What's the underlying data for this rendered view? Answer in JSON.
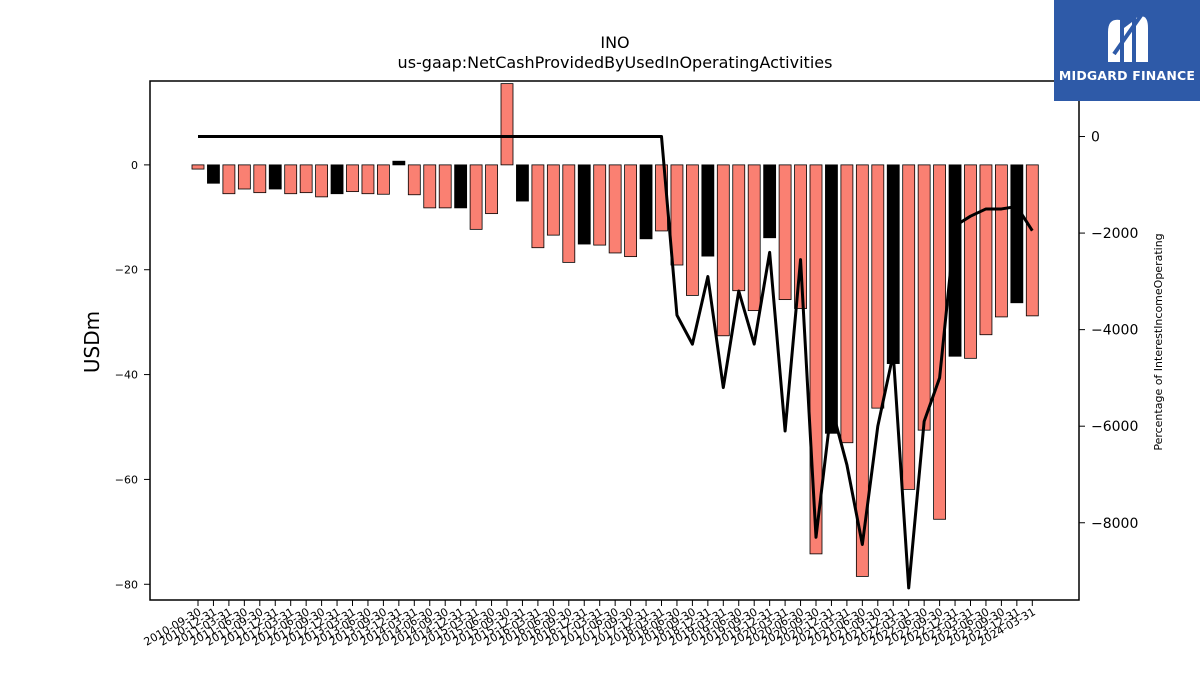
{
  "chart_data": {
    "type": "bar",
    "title": "INO",
    "subtitle": "us-gaap:NetCashProvidedByUsedInOperatingActivities",
    "ylabel": "USDm",
    "ylabel_right": "Percentage of InterestIncomeOperating",
    "ylim": [
      -83,
      16
    ],
    "ylim_right": [
      -9600,
      1150
    ],
    "yticks": [
      0,
      -20,
      -40,
      -60,
      -80
    ],
    "yticks_right": [
      0,
      -2000,
      -4000,
      -6000,
      -8000
    ],
    "grid": false,
    "categories": [
      "2010-09-30",
      "2010-12-31",
      "2011-03-31",
      "2011-06-30",
      "2011-09-30",
      "2011-12-31",
      "2012-03-31",
      "2012-06-30",
      "2012-09-30",
      "2012-12-31",
      "2013-03-31",
      "2013-06-30",
      "2013-09-30",
      "2013-12-31",
      "2014-03-31",
      "2014-06-30",
      "2014-09-30",
      "2014-12-31",
      "2015-03-31",
      "2015-06-30",
      "2015-09-30",
      "2015-12-31",
      "2016-03-31",
      "2016-06-30",
      "2016-09-30",
      "2016-12-31",
      "2017-03-31",
      "2017-06-30",
      "2017-09-30",
      "2017-12-31",
      "2018-03-31",
      "2018-06-30",
      "2018-09-30",
      "2018-12-31",
      "2019-03-31",
      "2019-06-30",
      "2019-09-30",
      "2019-12-31",
      "2020-03-31",
      "2020-06-30",
      "2020-09-30",
      "2020-12-31",
      "2021-03-31",
      "2021-06-30",
      "2021-09-30",
      "2021-12-31",
      "2022-03-31",
      "2022-06-30",
      "2022-09-30",
      "2022-12-31",
      "2023-03-31",
      "2023-06-30",
      "2023-09-30",
      "2023-12-31",
      "2024-03-31"
    ],
    "series": [
      {
        "values": [
          -0.8,
          -3.5,
          -5.5,
          -4.6,
          -5.3,
          -4.6,
          -5.5,
          -5.3,
          -6.1,
          -5.5,
          -5.1,
          -5.5,
          -5.6,
          0.7,
          -5.7,
          -8.2,
          -8.2,
          -8.2,
          -12.3,
          -9.3,
          15.5,
          -6.9,
          -15.8,
          -13.4,
          -18.6,
          -15.1,
          -15.3,
          -16.8,
          -17.5,
          -14.1,
          -12.6,
          -19.1,
          -24.9,
          -17.4,
          -32.6,
          -24.0,
          -27.8,
          -13.9,
          -25.7,
          -27.4,
          -74.2,
          -51.2,
          -53.0,
          -78.5,
          -46.4,
          -37.9,
          -61.9,
          -50.6,
          -67.6,
          -36.5,
          -36.9,
          -32.4,
          -29.0,
          -26.3,
          -28.8
        ],
        "colors": [
          "salmon",
          "black",
          "salmon",
          "salmon",
          "salmon",
          "black",
          "salmon",
          "salmon",
          "salmon",
          "black",
          "salmon",
          "salmon",
          "salmon",
          "black",
          "salmon",
          "salmon",
          "salmon",
          "black",
          "salmon",
          "salmon",
          "salmon",
          "black",
          "salmon",
          "salmon",
          "salmon",
          "black",
          "salmon",
          "salmon",
          "salmon",
          "black",
          "salmon",
          "salmon",
          "salmon",
          "black",
          "salmon",
          "salmon",
          "salmon",
          "black",
          "salmon",
          "salmon",
          "salmon",
          "black",
          "salmon",
          "salmon",
          "salmon",
          "black",
          "salmon",
          "salmon",
          "salmon",
          "black",
          "salmon",
          "salmon",
          "salmon",
          "black",
          "salmon"
        ]
      },
      {
        "type": "line",
        "axis": "right",
        "values": [
          0,
          0,
          0,
          0,
          0,
          0,
          0,
          0,
          0,
          0,
          0,
          0,
          0,
          0,
          0,
          0,
          0,
          0,
          0,
          0,
          0,
          0,
          0,
          0,
          0,
          0,
          0,
          0,
          0,
          0,
          0,
          -3700,
          -4300,
          -2900,
          -5200,
          -3200,
          -4300,
          -2400,
          -6100,
          -2550,
          -8300,
          -5600,
          -6800,
          -8450,
          -6000,
          -4500,
          -9350,
          -5900,
          -5000,
          -1850,
          -1650,
          -1500,
          -1500,
          -1450,
          -1950
        ]
      }
    ],
    "colors": {
      "salmon": "#fa8072",
      "black": "#000000",
      "line": "#000000"
    }
  },
  "logo": {
    "text": "MIDGARD FINANCE"
  }
}
